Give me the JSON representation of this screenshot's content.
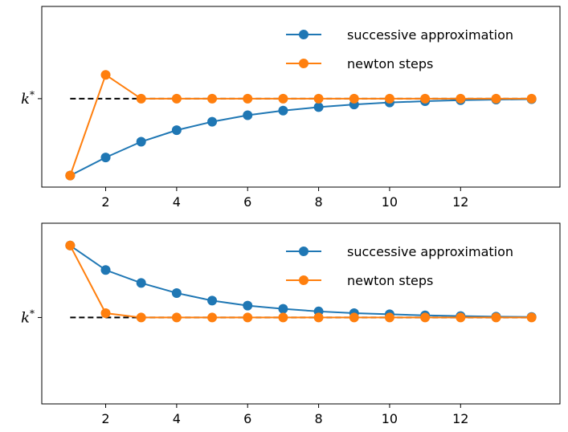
{
  "chart_data": [
    {
      "type": "line",
      "x": [
        1,
        2,
        3,
        4,
        5,
        6,
        7,
        8,
        9,
        10,
        11,
        12,
        13,
        14
      ],
      "ylim": [
        -1.15,
        1.2
      ],
      "xlim": [
        0.2,
        14.8
      ],
      "xticks": [
        2,
        4,
        6,
        8,
        10,
        12
      ],
      "reference_line": {
        "y": 0,
        "label": "k*",
        "style": "dashed",
        "color": "#000000"
      },
      "legend": "top-right",
      "grid": false,
      "series": [
        {
          "name": "successive approximation",
          "color": "#1f77b4",
          "values": [
            -1.0,
            -0.765,
            -0.56,
            -0.41,
            -0.3,
            -0.215,
            -0.155,
            -0.11,
            -0.075,
            -0.05,
            -0.033,
            -0.02,
            -0.012,
            -0.006
          ]
        },
        {
          "name": "newton steps",
          "color": "#ff7f0e",
          "values": [
            -1.0,
            0.31,
            0.0,
            0.0,
            0.0,
            0.0,
            0.0,
            0.0,
            0.0,
            0.0,
            0.0,
            0.0,
            0.0,
            0.0
          ]
        }
      ]
    },
    {
      "type": "line",
      "x": [
        1,
        2,
        3,
        4,
        5,
        6,
        7,
        8,
        9,
        10,
        11,
        12,
        13,
        14
      ],
      "ylim": [
        -1.2,
        1.31
      ],
      "xlim": [
        0.2,
        14.8
      ],
      "xticks": [
        2,
        4,
        6,
        8,
        10,
        12
      ],
      "reference_line": {
        "y": 0,
        "label": "k*",
        "style": "dashed",
        "color": "#000000"
      },
      "legend": "top-right",
      "grid": false,
      "series": [
        {
          "name": "successive approximation",
          "color": "#1f77b4",
          "values": [
            1.0,
            0.66,
            0.48,
            0.34,
            0.235,
            0.165,
            0.12,
            0.085,
            0.06,
            0.045,
            0.03,
            0.02,
            0.012,
            0.008
          ]
        },
        {
          "name": "newton steps",
          "color": "#ff7f0e",
          "values": [
            1.0,
            0.06,
            0.0,
            0.0,
            0.0,
            0.0,
            0.0,
            0.0,
            0.0,
            0.0,
            0.0,
            0.0,
            0.0,
            0.0
          ]
        }
      ]
    }
  ]
}
